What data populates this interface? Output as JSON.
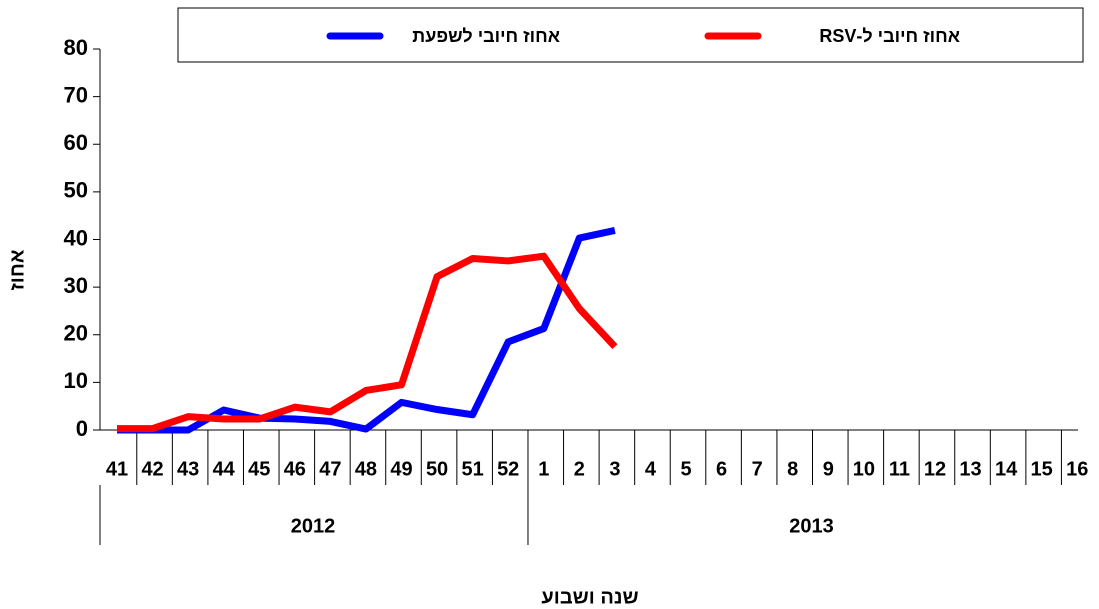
{
  "chart_data": {
    "type": "line",
    "y_label": "אחוז",
    "x_label": "שנה ושבוע",
    "categories": [
      "41",
      "42",
      "43",
      "44",
      "45",
      "46",
      "47",
      "48",
      "49",
      "50",
      "51",
      "52",
      "1",
      "2",
      "3",
      "4",
      "5",
      "6",
      "7",
      "8",
      "9",
      "10",
      "11",
      "12",
      "13",
      "14",
      "15",
      "16"
    ],
    "groups": [
      "2012",
      "2013"
    ],
    "series": [
      {
        "name": "אחוז חיובי לשפעת",
        "color": "#0000ff",
        "values": [
          0,
          0,
          0,
          4.2,
          2.5,
          2.3,
          1.8,
          0.2,
          5.8,
          4.3,
          3.2,
          18.5,
          21.3,
          40.3,
          41.9,
          null,
          null,
          null,
          null,
          null,
          null,
          null,
          null,
          null,
          null,
          null,
          null,
          null
        ]
      },
      {
        "name": "אחוז חיובי ל-RSV",
        "color": "#ff0000",
        "values": [
          0.3,
          0.3,
          2.8,
          2.3,
          2.3,
          4.8,
          3.8,
          8.3,
          9.5,
          32.2,
          36,
          35.5,
          36.5,
          25.5,
          17.5,
          null,
          null,
          null,
          null,
          null,
          null,
          null,
          null,
          null,
          null,
          null,
          null,
          null
        ]
      }
    ],
    "ylim": [
      0,
      80
    ],
    "yticks": [
      0,
      10,
      20,
      30,
      40,
      50,
      60,
      70,
      80
    ],
    "legend": "top"
  }
}
